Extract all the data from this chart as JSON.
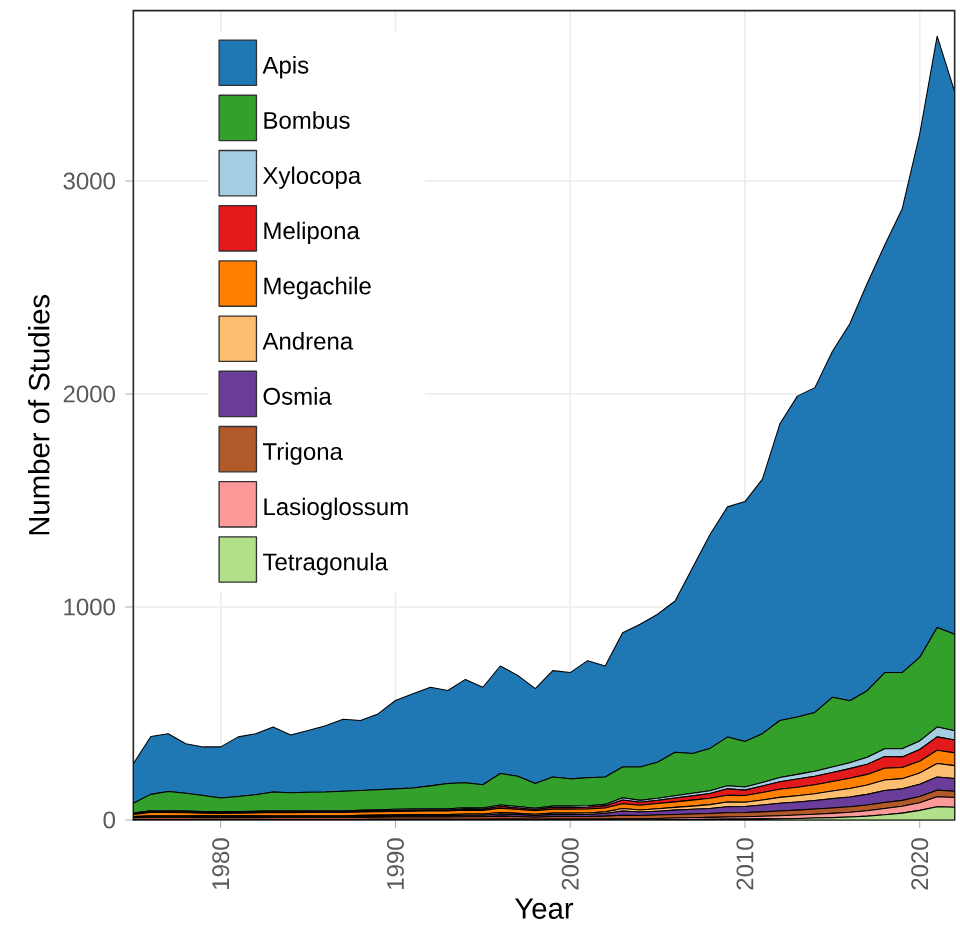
{
  "chart_data": {
    "type": "area",
    "stacked": true,
    "xlabel": "Year",
    "ylabel": "Number of Studies",
    "x": [
      1975,
      1976,
      1977,
      1978,
      1979,
      1980,
      1981,
      1982,
      1983,
      1984,
      1985,
      1986,
      1987,
      1988,
      1989,
      1990,
      1991,
      1992,
      1993,
      1994,
      1995,
      1996,
      1997,
      1998,
      1999,
      2000,
      2001,
      2002,
      2003,
      2004,
      2005,
      2006,
      2007,
      2008,
      2009,
      2010,
      2011,
      2012,
      2013,
      2014,
      2015,
      2016,
      2017,
      2018,
      2019,
      2020,
      2021,
      2022
    ],
    "xlim": [
      1975,
      2022
    ],
    "ylim": [
      0,
      3800
    ],
    "xticks": [
      1980,
      1990,
      2000,
      2010,
      2020
    ],
    "yticks": [
      0,
      1000,
      2000,
      3000
    ],
    "grid": true,
    "legend": "top left",
    "series": [
      {
        "name": "Tetragonula",
        "color": "#b2df8a",
        "values": [
          0,
          0,
          0,
          0,
          0,
          0,
          0,
          0,
          0,
          0,
          0,
          0,
          0,
          0,
          0,
          0,
          0,
          0,
          0,
          0,
          0,
          0,
          0,
          0,
          0,
          0,
          0,
          0,
          1,
          1,
          1,
          2,
          2,
          3,
          4,
          4,
          5,
          6,
          7,
          9,
          11,
          14,
          18,
          24,
          32,
          45,
          62,
          60
        ]
      },
      {
        "name": "Lasioglossum",
        "color": "#fb9a99",
        "values": [
          2,
          2,
          2,
          2,
          2,
          2,
          2,
          2,
          2,
          2,
          2,
          2,
          2,
          2,
          3,
          3,
          3,
          3,
          3,
          3,
          3,
          4,
          4,
          3,
          4,
          4,
          4,
          4,
          5,
          5,
          6,
          7,
          8,
          9,
          10,
          11,
          12,
          14,
          16,
          18,
          20,
          22,
          25,
          30,
          32,
          36,
          47,
          45
        ]
      },
      {
        "name": "Trigona",
        "color": "#b15928",
        "values": [
          8,
          10,
          10,
          10,
          9,
          9,
          9,
          9,
          10,
          10,
          10,
          10,
          10,
          10,
          10,
          11,
          11,
          11,
          11,
          12,
          12,
          14,
          12,
          10,
          12,
          12,
          12,
          14,
          16,
          15,
          16,
          17,
          18,
          18,
          20,
          20,
          21,
          22,
          23,
          24,
          25,
          26,
          27,
          28,
          28,
          29,
          31,
          30
        ]
      },
      {
        "name": "Osmia",
        "color": "#6a3d9a",
        "values": [
          3,
          4,
          4,
          4,
          4,
          4,
          4,
          4,
          4,
          4,
          4,
          4,
          4,
          5,
          5,
          5,
          6,
          6,
          6,
          7,
          7,
          10,
          9,
          8,
          9,
          9,
          10,
          12,
          20,
          16,
          18,
          20,
          22,
          24,
          28,
          28,
          32,
          36,
          38,
          40,
          44,
          46,
          50,
          56,
          54,
          58,
          62,
          60
        ]
      },
      {
        "name": "Andrena",
        "color": "#fdbf6f",
        "values": [
          3,
          4,
          4,
          4,
          4,
          4,
          4,
          4,
          4,
          4,
          4,
          4,
          4,
          5,
          5,
          5,
          5,
          5,
          5,
          6,
          6,
          7,
          6,
          6,
          7,
          7,
          7,
          8,
          12,
          10,
          12,
          13,
          15,
          18,
          22,
          20,
          24,
          28,
          30,
          32,
          36,
          40,
          44,
          50,
          48,
          52,
          63,
          60
        ]
      },
      {
        "name": "Megachile",
        "color": "#ff7f00",
        "values": [
          10,
          15,
          15,
          14,
          13,
          12,
          13,
          14,
          15,
          14,
          15,
          15,
          15,
          15,
          16,
          16,
          16,
          17,
          17,
          18,
          17,
          20,
          18,
          16,
          18,
          18,
          18,
          18,
          22,
          22,
          24,
          26,
          28,
          30,
          32,
          32,
          35,
          38,
          40,
          42,
          45,
          48,
          50,
          55,
          52,
          56,
          62,
          60
        ]
      },
      {
        "name": "Melipona",
        "color": "#e31a1c",
        "values": [
          2,
          3,
          3,
          3,
          3,
          3,
          3,
          3,
          3,
          3,
          3,
          3,
          3,
          3,
          4,
          4,
          4,
          5,
          5,
          5,
          5,
          8,
          7,
          6,
          8,
          8,
          9,
          10,
          18,
          14,
          15,
          18,
          20,
          22,
          30,
          25,
          30,
          35,
          38,
          40,
          42,
          45,
          48,
          55,
          50,
          55,
          63,
          60
        ]
      },
      {
        "name": "Xylocopa",
        "color": "#a6cee3",
        "values": [
          4,
          5,
          5,
          5,
          5,
          5,
          5,
          5,
          5,
          5,
          5,
          5,
          5,
          5,
          5,
          6,
          6,
          6,
          6,
          6,
          6,
          7,
          7,
          6,
          7,
          7,
          7,
          7,
          10,
          9,
          10,
          11,
          12,
          13,
          15,
          15,
          17,
          20,
          22,
          24,
          26,
          28,
          32,
          36,
          38,
          40,
          46,
          44
        ]
      },
      {
        "name": "Bombus",
        "color": "#33a02c",
        "values": [
          46,
          77,
          91,
          83,
          75,
          64,
          70,
          77,
          88,
          86,
          87,
          88,
          92,
          93,
          94,
          96,
          99,
          107,
          118,
          118,
          109,
          148,
          142,
          116,
          137,
          128,
          131,
          129,
          145,
          157,
          169,
          204,
          187,
          199,
          228,
          213,
          229,
          268,
          269,
          276,
          327,
          291,
          313,
          358,
          358,
          392,
          468,
          453
        ]
      },
      {
        "name": "Apis",
        "color": "#1f78b4",
        "values": [
          186,
          272,
          271,
          233,
          228,
          240,
          280,
          287,
          305,
          271,
          290,
          311,
          338,
          329,
          356,
          415,
          442,
          463,
          437,
          485,
          458,
          505,
          474,
          446,
          499,
          499,
          550,
          521,
          630,
          670,
          695,
          710,
          872,
          1004,
          1081,
          1127,
          1195,
          1393,
          1507,
          1525,
          1624,
          1770,
          1913,
          2008,
          2178,
          2457,
          2776,
          2548
        ]
      }
    ]
  }
}
